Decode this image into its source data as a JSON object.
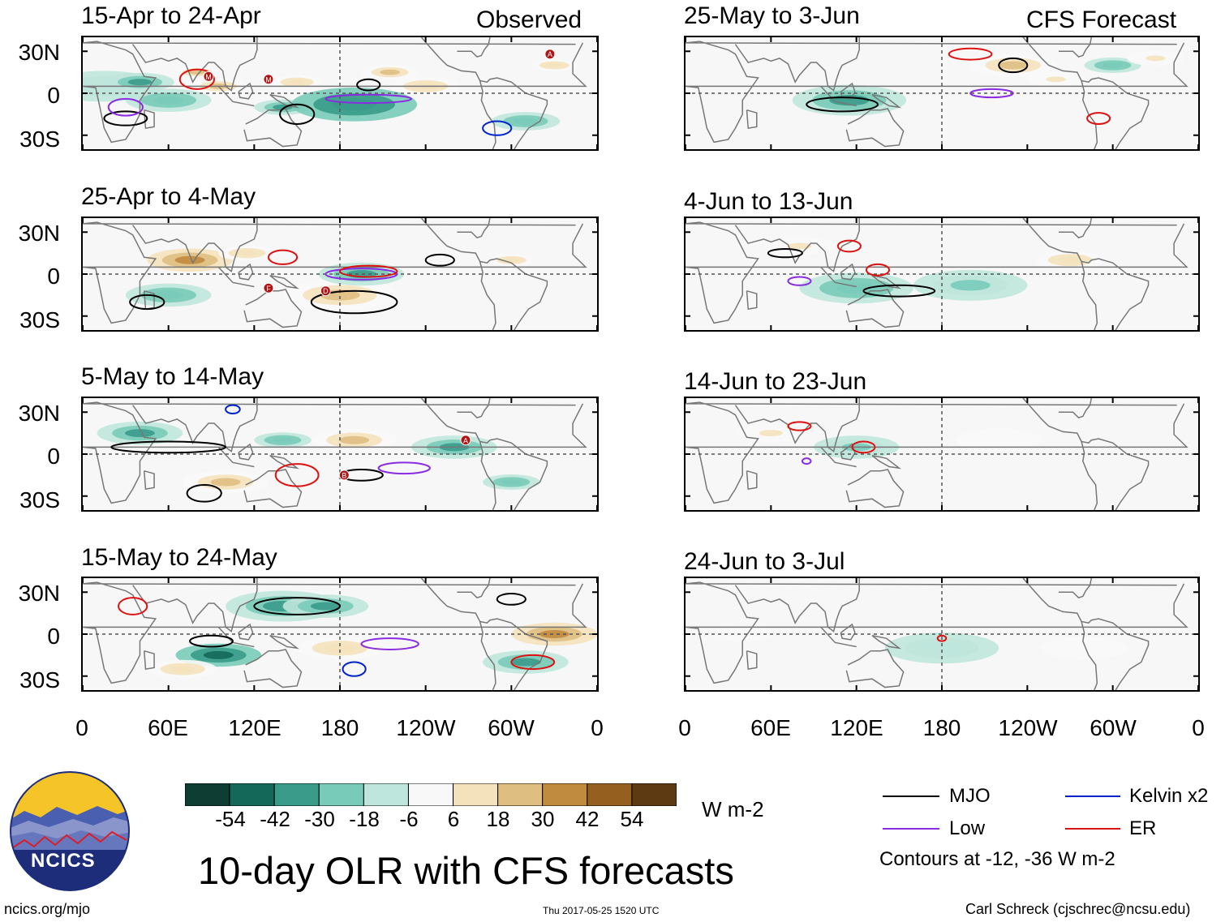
{
  "chart_data": {
    "type": "heatmap",
    "title": "10-day OLR with CFS forecasts",
    "units": "W m-2",
    "column_titles": {
      "left": "Observed",
      "right": "CFS Forecast"
    },
    "latitude_ticks": [
      "30N",
      "0",
      "30S"
    ],
    "longitude_ticks": [
      "0",
      "60E",
      "120E",
      "180",
      "120W",
      "60W",
      "0"
    ],
    "lat_range": [
      -40,
      40
    ],
    "lon_range": [
      0,
      360
    ],
    "colorbar": {
      "tick_labels": [
        "-54",
        "-42",
        "-30",
        "-18",
        "-6",
        "6",
        "18",
        "30",
        "42",
        "54"
      ],
      "colors": [
        "#0d3d33",
        "#14685a",
        "#3a9b8a",
        "#79cbb9",
        "#bfe6dc",
        "#f8f8f8",
        "#f4e2bd",
        "#dfbe82",
        "#c08b3f",
        "#95601f",
        "#5e3a13"
      ]
    },
    "panels": [
      {
        "title": "15-Apr to 24-Apr",
        "type": "observed",
        "anomalies": [
          [
            15,
            5,
            20,
            -10
          ],
          [
            40,
            8,
            12,
            -30
          ],
          [
            60,
            -5,
            15,
            -20
          ],
          [
            80,
            15,
            8,
            28
          ],
          [
            95,
            5,
            10,
            30
          ],
          [
            140,
            -10,
            10,
            -26
          ],
          [
            150,
            8,
            9,
            22
          ],
          [
            190,
            -8,
            22,
            -36
          ],
          [
            215,
            15,
            10,
            34
          ],
          [
            240,
            5,
            12,
            18
          ],
          [
            310,
            -20,
            12,
            -20
          ],
          [
            330,
            20,
            8,
            18
          ]
        ],
        "contours": [
          {
            "kind": "mjo",
            "lon": 150,
            "lat": -15,
            "rlon": 12,
            "rlat": 7
          },
          {
            "kind": "mjo",
            "lon": 30,
            "lat": -18,
            "rlon": 15,
            "rlat": 5
          },
          {
            "kind": "mjo",
            "lon": 200,
            "lat": 6,
            "rlon": 8,
            "rlat": 4
          },
          {
            "kind": "low",
            "lon": 200,
            "lat": -4,
            "rlon": 30,
            "rlat": 3
          },
          {
            "kind": "low",
            "lon": 30,
            "lat": -10,
            "rlon": 12,
            "rlat": 6
          },
          {
            "kind": "er",
            "lon": 80,
            "lat": 10,
            "rlon": 12,
            "rlat": 7
          },
          {
            "kind": "kelvin",
            "lon": 290,
            "lat": -25,
            "rlon": 10,
            "rlat": 5
          }
        ],
        "storms": [
          {
            "label": "M",
            "lon": 88,
            "lat": 12
          },
          {
            "label": "M",
            "lon": 130,
            "lat": 10
          },
          {
            "label": "A",
            "lon": 327,
            "lat": 28
          }
        ]
      },
      {
        "title": "25-Apr to 4-May",
        "type": "observed",
        "anomalies": [
          [
            75,
            10,
            15,
            46
          ],
          [
            180,
            -15,
            20,
            30
          ],
          [
            195,
            0,
            15,
            -34
          ],
          [
            60,
            -15,
            15,
            -20
          ],
          [
            115,
            15,
            10,
            20
          ],
          [
            300,
            10,
            8,
            20
          ]
        ],
        "contours": [
          {
            "kind": "mjo",
            "lon": 190,
            "lat": -20,
            "rlon": 30,
            "rlat": 8
          },
          {
            "kind": "mjo",
            "lon": 45,
            "lat": -20,
            "rlon": 12,
            "rlat": 5
          },
          {
            "kind": "mjo",
            "lon": 250,
            "lat": 10,
            "rlon": 10,
            "rlat": 4
          },
          {
            "kind": "low",
            "lon": 195,
            "lat": 0,
            "rlon": 25,
            "rlat": 4
          },
          {
            "kind": "er",
            "lon": 200,
            "lat": 2,
            "rlon": 20,
            "rlat": 4
          },
          {
            "kind": "er",
            "lon": 140,
            "lat": 12,
            "rlon": 10,
            "rlat": 5
          }
        ],
        "storms": [
          {
            "label": "F",
            "lon": 130,
            "lat": -10
          },
          {
            "label": "D",
            "lon": 170,
            "lat": -12
          }
        ]
      },
      {
        "title": "5-May to 14-May",
        "type": "observed",
        "anomalies": [
          [
            40,
            15,
            15,
            -26
          ],
          [
            260,
            5,
            15,
            -30
          ],
          [
            100,
            -20,
            15,
            32
          ],
          [
            190,
            10,
            15,
            24
          ],
          [
            300,
            -20,
            10,
            -18
          ],
          [
            140,
            10,
            10,
            -20
          ]
        ],
        "contours": [
          {
            "kind": "mjo",
            "lon": 60,
            "lat": 5,
            "rlon": 40,
            "rlat": 4
          },
          {
            "kind": "mjo",
            "lon": 85,
            "lat": -28,
            "rlon": 12,
            "rlat": 6
          },
          {
            "kind": "mjo",
            "lon": 195,
            "lat": -15,
            "rlon": 15,
            "rlat": 4
          },
          {
            "kind": "low",
            "lon": 225,
            "lat": -10,
            "rlon": 18,
            "rlat": 4
          },
          {
            "kind": "er",
            "lon": 150,
            "lat": -15,
            "rlon": 15,
            "rlat": 8
          },
          {
            "kind": "kelvin",
            "lon": 105,
            "lat": 32,
            "rlon": 5,
            "rlat": 3
          }
        ],
        "storms": [
          {
            "label": "A",
            "lon": 268,
            "lat": 10
          },
          {
            "label": "B",
            "lon": 183,
            "lat": -15
          }
        ]
      },
      {
        "title": "15-May to 24-May",
        "type": "observed",
        "anomalies": [
          [
            95,
            -15,
            15,
            -48
          ],
          [
            140,
            20,
            20,
            -30
          ],
          [
            170,
            20,
            15,
            -26
          ],
          [
            310,
            -20,
            15,
            -30
          ],
          [
            330,
            0,
            15,
            36
          ],
          [
            70,
            -25,
            12,
            22
          ],
          [
            180,
            -10,
            15,
            18
          ]
        ],
        "contours": [
          {
            "kind": "mjo",
            "lon": 150,
            "lat": 20,
            "rlon": 30,
            "rlat": 6
          },
          {
            "kind": "mjo",
            "lon": 90,
            "lat": -5,
            "rlon": 15,
            "rlat": 4
          },
          {
            "kind": "mjo",
            "lon": 300,
            "lat": 25,
            "rlon": 10,
            "rlat": 4
          },
          {
            "kind": "low",
            "lon": 215,
            "lat": -7,
            "rlon": 20,
            "rlat": 4
          },
          {
            "kind": "er",
            "lon": 315,
            "lat": -20,
            "rlon": 15,
            "rlat": 5
          },
          {
            "kind": "er",
            "lon": 35,
            "lat": 20,
            "rlon": 10,
            "rlat": 6
          },
          {
            "kind": "kelvin",
            "lon": 190,
            "lat": -25,
            "rlon": 8,
            "rlat": 5
          }
        ],
        "storms": []
      },
      {
        "title": "25-May to 3-Jun",
        "type": "forecast",
        "anomalies": [
          [
            115,
            -5,
            20,
            -30
          ],
          [
            230,
            20,
            15,
            24
          ],
          [
            300,
            20,
            10,
            -20
          ],
          [
            260,
            10,
            10,
            16
          ],
          [
            330,
            25,
            10,
            14
          ]
        ],
        "contours": [
          {
            "kind": "mjo",
            "lon": 110,
            "lat": -8,
            "rlon": 25,
            "rlat": 5
          },
          {
            "kind": "mjo",
            "lon": 230,
            "lat": 20,
            "rlon": 10,
            "rlat": 5
          },
          {
            "kind": "low",
            "lon": 215,
            "lat": 0,
            "rlon": 15,
            "rlat": 3
          },
          {
            "kind": "er",
            "lon": 200,
            "lat": 28,
            "rlon": 15,
            "rlat": 4
          },
          {
            "kind": "er",
            "lon": 290,
            "lat": -18,
            "rlon": 8,
            "rlat": 4
          }
        ],
        "storms": []
      },
      {
        "title": "4-Jun to 13-Jun",
        "type": "forecast",
        "anomalies": [
          [
            120,
            -10,
            20,
            -22
          ],
          [
            200,
            -8,
            20,
            -14
          ],
          [
            80,
            20,
            12,
            16
          ],
          [
            270,
            10,
            12,
            18
          ]
        ],
        "contours": [
          {
            "kind": "mjo",
            "lon": 150,
            "lat": -12,
            "rlon": 25,
            "rlat": 4
          },
          {
            "kind": "mjo",
            "lon": 70,
            "lat": 15,
            "rlon": 12,
            "rlat": 3
          },
          {
            "kind": "low",
            "lon": 80,
            "lat": -5,
            "rlon": 8,
            "rlat": 3
          },
          {
            "kind": "er",
            "lon": 135,
            "lat": 3,
            "rlon": 8,
            "rlat": 4
          },
          {
            "kind": "er",
            "lon": 115,
            "lat": 20,
            "rlon": 8,
            "rlat": 4
          }
        ],
        "storms": []
      },
      {
        "title": "14-Jun to 23-Jun",
        "type": "forecast",
        "anomalies": [
          [
            120,
            5,
            15,
            -16
          ],
          [
            60,
            15,
            12,
            12
          ],
          [
            220,
            10,
            15,
            10
          ]
        ],
        "contours": [
          {
            "kind": "er",
            "lon": 125,
            "lat": 5,
            "rlon": 8,
            "rlat": 4
          },
          {
            "kind": "er",
            "lon": 80,
            "lat": 20,
            "rlon": 8,
            "rlat": 3
          },
          {
            "kind": "low",
            "lon": 85,
            "lat": -5,
            "rlon": 3,
            "rlat": 2
          }
        ],
        "storms": []
      },
      {
        "title": "24-Jun to 3-Jul",
        "type": "forecast",
        "anomalies": [
          [
            180,
            -10,
            20,
            -10
          ],
          [
            40,
            0,
            10,
            8
          ],
          [
            280,
            -10,
            15,
            8
          ]
        ],
        "contours": [
          {
            "kind": "er",
            "lon": 180,
            "lat": -3,
            "rlon": 3,
            "rlat": 2
          }
        ],
        "storms": []
      }
    ]
  },
  "legend": {
    "items": [
      {
        "label": "MJO",
        "color": "#000000"
      },
      {
        "label": "Kelvin x2",
        "color": "#0022cc"
      },
      {
        "label": "Low",
        "color": "#8a2be2"
      },
      {
        "label": "ER",
        "color": "#dd1111"
      }
    ],
    "note": "Contours at -12, -36 W m-2"
  },
  "logo": {
    "text": "NCICS"
  },
  "footer": {
    "url": "ncics.org/mjo",
    "timestamp": "Thu 2017-05-25 1520 UTC",
    "credit": "Carl Schreck (cjschrec@ncsu.edu)"
  }
}
